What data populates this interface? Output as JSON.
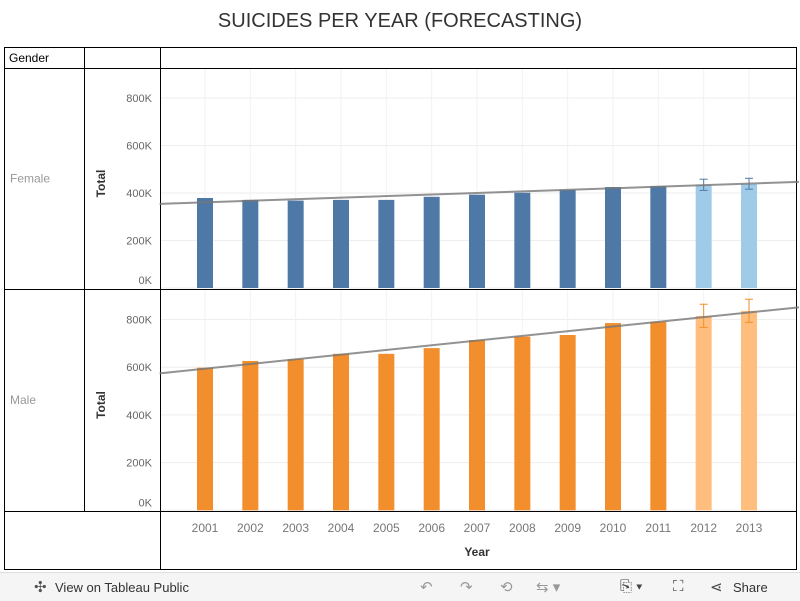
{
  "title": "SUICIDES PER YEAR (FORECASTING)",
  "chart_data": [
    {
      "type": "bar",
      "row_header": "Gender",
      "panel": "Female",
      "ylabel": "Total",
      "xlabel": "Year",
      "ylim": [
        0,
        900000
      ],
      "yticks": [
        "0K",
        "200K",
        "400K",
        "600K",
        "800K"
      ],
      "categories": [
        "2001",
        "2002",
        "2003",
        "2004",
        "2005",
        "2006",
        "2007",
        "2008",
        "2009",
        "2010",
        "2011",
        "2012",
        "2013"
      ],
      "values": [
        379000,
        371000,
        368000,
        371000,
        371000,
        384000,
        393000,
        401000,
        413000,
        425000,
        429000,
        434000,
        438000
      ],
      "forecast": [
        false,
        false,
        false,
        false,
        false,
        false,
        false,
        false,
        false,
        false,
        false,
        true,
        true
      ],
      "error_low": [
        null,
        null,
        null,
        null,
        null,
        null,
        null,
        null,
        null,
        null,
        null,
        411000,
        416000
      ],
      "error_high": [
        null,
        null,
        null,
        null,
        null,
        null,
        null,
        null,
        null,
        null,
        null,
        458000,
        462000
      ],
      "trend_line": {
        "from": [
          2000.0,
          354000
        ],
        "to": [
          2014.1,
          447000
        ]
      },
      "color": "#4e79a7",
      "forecast_color": "#a0cbe8"
    },
    {
      "type": "bar",
      "panel": "Male",
      "ylabel": "Total",
      "xlabel": "Year",
      "ylim": [
        0,
        900000
      ],
      "yticks": [
        "0K",
        "200K",
        "400K",
        "600K",
        "800K"
      ],
      "categories": [
        "2001",
        "2002",
        "2003",
        "2004",
        "2005",
        "2006",
        "2007",
        "2008",
        "2009",
        "2010",
        "2011",
        "2012",
        "2013"
      ],
      "values": [
        598000,
        626000,
        634000,
        656000,
        656000,
        680000,
        714000,
        728000,
        735000,
        785000,
        791000,
        815000,
        836000
      ],
      "forecast": [
        false,
        false,
        false,
        false,
        false,
        false,
        false,
        false,
        false,
        false,
        false,
        true,
        true
      ],
      "error_low": [
        null,
        null,
        null,
        null,
        null,
        null,
        null,
        null,
        null,
        null,
        null,
        767000,
        788000
      ],
      "error_high": [
        null,
        null,
        null,
        null,
        null,
        null,
        null,
        null,
        null,
        null,
        null,
        864000,
        885000
      ],
      "trend_line": {
        "from": [
          2000.0,
          574000
        ],
        "to": [
          2014.1,
          851000
        ]
      },
      "color": "#f28e2b",
      "forecast_color": "#ffbe7d"
    }
  ],
  "toolbar": {
    "view_label": "View on Tableau Public",
    "share_label": "Share"
  }
}
